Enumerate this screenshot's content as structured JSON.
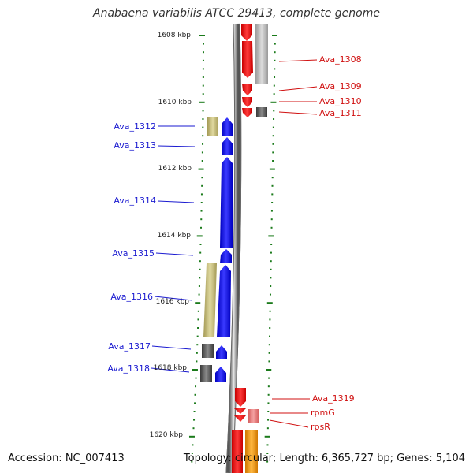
{
  "title": "Anabaena variabilis ATCC 29413, complete genome",
  "accession_text": "Accession: NC_007413",
  "topology_text": "Topology: circular; Length: 6,365,727 bp; Genes: 5,104",
  "scale_labels": [
    "1608 kbp",
    "1610 kbp",
    "1612 kbp",
    "1614 kbp",
    "1616 kbp",
    "1618 kbp",
    "1620 kbp"
  ],
  "genes_left": [
    "Ava_1312",
    "Ava_1313",
    "Ava_1314",
    "Ava_1315",
    "Ava_1316",
    "Ava_1317",
    "Ava_1318"
  ],
  "genes_right": [
    "Ava_1308",
    "Ava_1309",
    "Ava_1310",
    "Ava_1311",
    "Ava_1319",
    "rpmG",
    "rpsR"
  ],
  "colors": {
    "forward_strand": "#ee1111",
    "reverse_strand": "#1515ee",
    "pseudo_khaki": "#c8c080",
    "hypothetical_gray": "#666666",
    "rna_pink": "#ee7777",
    "orange": "#f59a10",
    "light_gray": "#bbbbbb",
    "tick_green": "#1a7a1a"
  }
}
